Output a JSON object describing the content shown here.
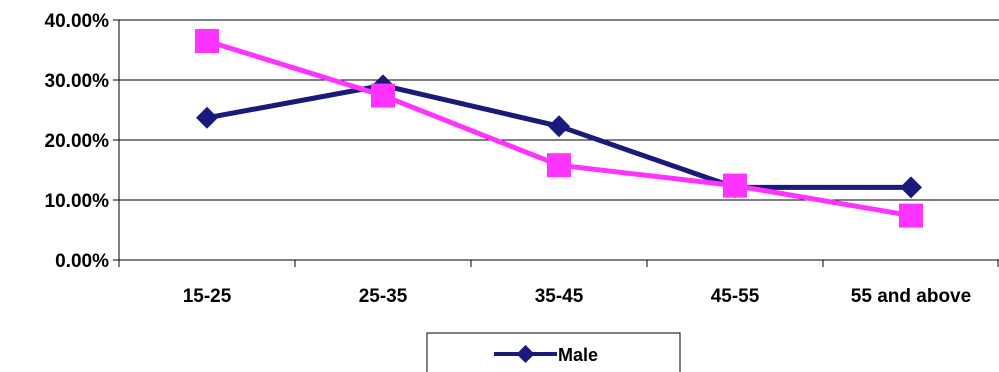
{
  "chart_data": {
    "type": "line",
    "title": "",
    "xlabel": "",
    "ylabel": "",
    "categories": [
      "15-25",
      "25-35",
      "35-45",
      "45-55",
      "55 and above"
    ],
    "yticks": [
      "0.00%",
      "10.00%",
      "20.00%",
      "30.00%",
      "40.00%"
    ],
    "ylim": [
      0,
      40
    ],
    "y_unit": "percent",
    "grid": "horizontal",
    "legend_position": "bottom",
    "series": [
      {
        "name": "Male",
        "values": [
          23.7,
          29.1,
          22.3,
          12.1,
          12.1
        ],
        "color": "#1a1a7a",
        "marker": "diamond"
      },
      {
        "values": [
          36.5,
          27.4,
          15.8,
          12.4,
          7.4
        ],
        "color": "#ff33ff",
        "marker": "square"
      }
    ]
  }
}
